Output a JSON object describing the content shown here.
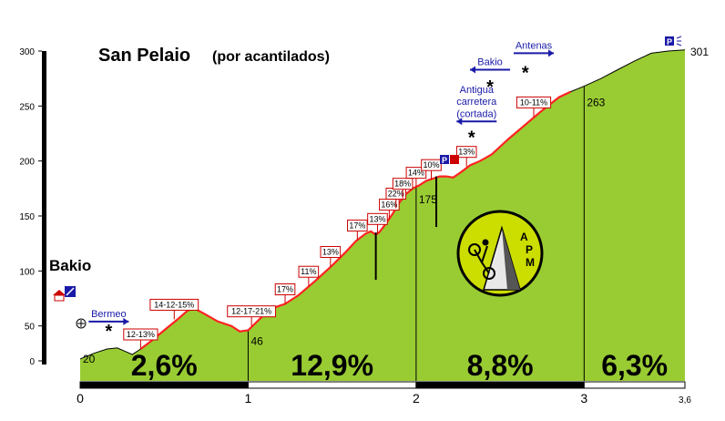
{
  "title": "San Pelaio",
  "subtitle": "(por acantilados)",
  "start_name": "Bakio",
  "logo_text": "APM",
  "colors": {
    "fill": "#99cc33",
    "road": "#ff2222",
    "label_border": "#cc0000",
    "poi": "#1a1aa8",
    "bar": "#000000"
  },
  "chart_data": {
    "type": "area",
    "xlim": [
      0,
      3.6
    ],
    "ylim": [
      0,
      300
    ],
    "grid": false,
    "y_ticks": [
      "0",
      "50",
      "100",
      "150",
      "200",
      "250",
      "300"
    ],
    "x_ticks": [
      {
        "v": 0,
        "label": "0"
      },
      {
        "v": 1,
        "label": "1"
      },
      {
        "v": 2,
        "label": "2"
      },
      {
        "v": 3,
        "label": "3"
      },
      {
        "v": 3.6,
        "label": "3,6"
      }
    ],
    "profile": [
      [
        0,
        20
      ],
      [
        0.08,
        25
      ],
      [
        0.16,
        29
      ],
      [
        0.22,
        30
      ],
      [
        0.28,
        26
      ],
      [
        0.31,
        24
      ],
      [
        0.36,
        29
      ],
      [
        0.42,
        36
      ],
      [
        0.5,
        46
      ],
      [
        0.58,
        56
      ],
      [
        0.64,
        64
      ],
      [
        0.68,
        66
      ],
      [
        0.74,
        61
      ],
      [
        0.82,
        54
      ],
      [
        0.9,
        50
      ],
      [
        0.95,
        45
      ],
      [
        1,
        46
      ],
      [
        1.06,
        55
      ],
      [
        1.12,
        64
      ],
      [
        1.16,
        67
      ],
      [
        1.22,
        70
      ],
      [
        1.3,
        78
      ],
      [
        1.4,
        91
      ],
      [
        1.5,
        105
      ],
      [
        1.58,
        117
      ],
      [
        1.64,
        127
      ],
      [
        1.7,
        134
      ],
      [
        1.73,
        136
      ],
      [
        1.76,
        133
      ],
      [
        1.78,
        135
      ],
      [
        1.82,
        143
      ],
      [
        1.86,
        152
      ],
      [
        1.9,
        162
      ],
      [
        1.94,
        170
      ],
      [
        1.98,
        175
      ],
      [
        2.02,
        178
      ],
      [
        2.06,
        182
      ],
      [
        2.1,
        184
      ],
      [
        2.14,
        186
      ],
      [
        2.18,
        186
      ],
      [
        2.22,
        185
      ],
      [
        2.26,
        189
      ],
      [
        2.32,
        196
      ],
      [
        2.38,
        200
      ],
      [
        2.45,
        206
      ],
      [
        2.55,
        220
      ],
      [
        2.65,
        233
      ],
      [
        2.75,
        246
      ],
      [
        2.85,
        258
      ],
      [
        2.92,
        263
      ],
      [
        3,
        268
      ],
      [
        3.1,
        275
      ],
      [
        3.2,
        283
      ],
      [
        3.3,
        291
      ],
      [
        3.4,
        298
      ],
      [
        3.5,
        300
      ],
      [
        3.6,
        301
      ]
    ],
    "road_from_km": 0.32,
    "segments": [
      {
        "from": 0,
        "to": 1,
        "label": "2,6%"
      },
      {
        "from": 1,
        "to": 2,
        "label": "12,9%"
      },
      {
        "from": 2,
        "to": 3,
        "label": "8,8%"
      },
      {
        "from": 3,
        "to": 3.6,
        "label": "6,3%"
      }
    ],
    "altitudes": [
      {
        "km": 0,
        "alt": 20,
        "label": "20"
      },
      {
        "km": 1,
        "alt": 46,
        "label": "46"
      },
      {
        "km": 2,
        "alt": 175,
        "label": "175"
      },
      {
        "km": 3,
        "alt": 263,
        "label": "263"
      },
      {
        "km": 3.6,
        "alt": 301,
        "label": "301"
      }
    ],
    "gradient_labels": [
      {
        "km": 0.36,
        "alt": 29,
        "label": "12-13%"
      },
      {
        "km": 0.56,
        "alt": 56,
        "label": "14-12-15%"
      },
      {
        "km": 1.02,
        "alt": 50,
        "label": "12-17-21%"
      },
      {
        "km": 1.22,
        "alt": 70,
        "label": "17%"
      },
      {
        "km": 1.36,
        "alt": 86,
        "label": "11%"
      },
      {
        "km": 1.49,
        "alt": 104,
        "label": "13%"
      },
      {
        "km": 1.65,
        "alt": 128,
        "label": "17%"
      },
      {
        "km": 1.77,
        "alt": 134,
        "label": "13%"
      },
      {
        "km": 1.84,
        "alt": 147,
        "label": "16%"
      },
      {
        "km": 1.88,
        "alt": 157,
        "label": "22%"
      },
      {
        "km": 1.92,
        "alt": 166,
        "label": "18%"
      },
      {
        "km": 2.0,
        "alt": 176,
        "label": "14%"
      },
      {
        "km": 2.09,
        "alt": 183,
        "label": "10%"
      },
      {
        "km": 2.3,
        "alt": 195,
        "label": "13%"
      },
      {
        "km": 2.7,
        "alt": 240,
        "label": "10-11%"
      }
    ],
    "annotations": [
      {
        "text": "Bermeo",
        "km": 0.17,
        "alt": 58
      },
      {
        "text": "Bakio",
        "km": 2.44,
        "alt": 287
      },
      {
        "text": "Antenas",
        "km": 2.7,
        "alt": 302
      },
      {
        "text": "Antigua",
        "km": 2.36,
        "alt": 262
      },
      {
        "text": "carretera",
        "km": 2.36,
        "alt": 251
      },
      {
        "text": "(cortada)",
        "km": 2.36,
        "alt": 240
      }
    ],
    "stars": [
      {
        "km": 0.17,
        "alt": 48
      },
      {
        "km": 2.44,
        "alt": 270
      },
      {
        "km": 2.65,
        "alt": 283
      },
      {
        "km": 2.33,
        "alt": 224
      }
    ],
    "markers": [
      {
        "km": 1.76,
        "top_alt": 135,
        "bottom_alt": 92
      },
      {
        "km": 2.12,
        "top_alt": 186,
        "bottom_alt": 140
      }
    ]
  }
}
